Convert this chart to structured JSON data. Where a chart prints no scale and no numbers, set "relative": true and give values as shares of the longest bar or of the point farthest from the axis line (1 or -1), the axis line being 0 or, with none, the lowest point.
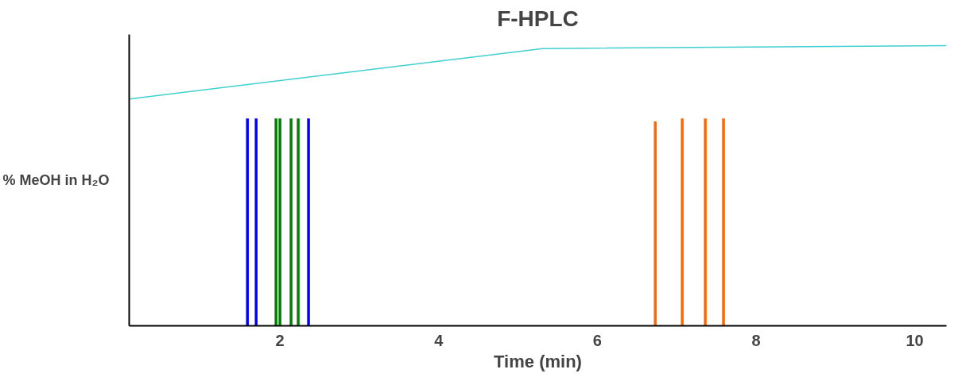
{
  "chart_data": {
    "type": "bar",
    "title": "F-HPLC",
    "xlabel": "Time (min)",
    "ylabel": "% MeOH in H₂O",
    "relative": true,
    "tick_labels": "x",
    "grid": false,
    "xlim": [
      0.1,
      10.4
    ],
    "xticks": [
      2,
      4,
      6,
      8,
      10
    ],
    "series": [
      {
        "type": "line",
        "color": "#40d0d0",
        "x": [
          0.1,
          5.31,
          10.4
        ],
        "values": [
          0.81,
          0.99,
          1.0
        ]
      },
      {
        "color": "#0000ff",
        "x": [
          1.59,
          1.7,
          2.36
        ],
        "values": [
          0.74,
          0.74,
          0.74
        ]
      },
      {
        "color": "#008000",
        "x": [
          1.95,
          2.0,
          2.14,
          2.23
        ],
        "values": [
          0.74,
          0.74,
          0.74,
          0.74
        ]
      },
      {
        "color": "#ff6600",
        "x": [
          6.73,
          7.07,
          7.36,
          7.59
        ],
        "values": [
          0.73,
          0.74,
          0.74,
          0.74
        ]
      }
    ]
  }
}
